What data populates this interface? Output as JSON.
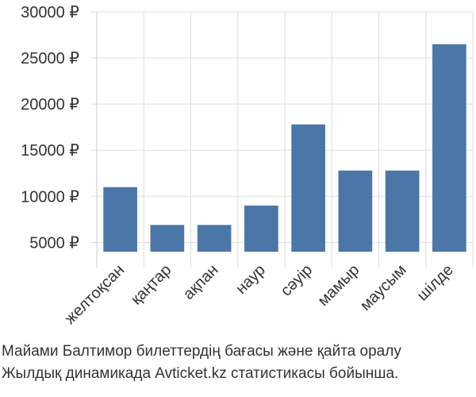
{
  "chart_data": {
    "type": "bar",
    "categories": [
      "желтоқсан",
      "қаңтар",
      "ақпан",
      "наур",
      "сәуір",
      "мамыр",
      "маусым",
      "шілде"
    ],
    "values": [
      11000,
      6900,
      6900,
      9000,
      17800,
      12800,
      12800,
      26500
    ],
    "y_ticks": [
      5000,
      10000,
      15000,
      20000,
      25000,
      30000
    ],
    "y_tick_labels": [
      "5000 ₽",
      "10000 ₽",
      "15000 ₽",
      "20000 ₽",
      "25000 ₽",
      "30000 ₽"
    ],
    "ylim": [
      4000,
      30000
    ],
    "grid": true,
    "bar_color": "#4a76a8",
    "grid_color": "#dddddd"
  },
  "caption": {
    "line1": "Майами Балтимор билеттердің бағасы және қайта оралу",
    "line2": "Жылдық динамикада Avticket.kz статистикасы бойынша."
  }
}
